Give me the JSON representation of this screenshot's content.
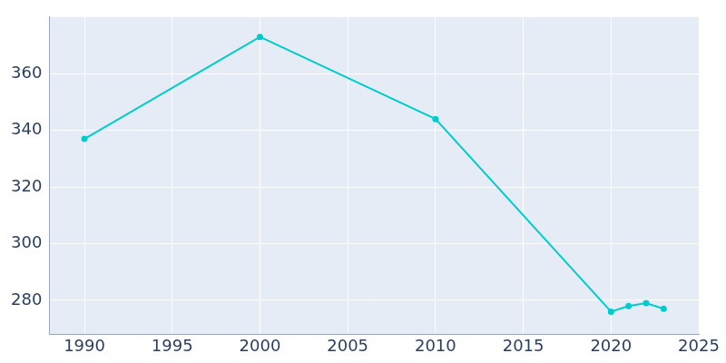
{
  "chart_data": {
    "type": "line",
    "x": [
      1990,
      2000,
      2010,
      2020,
      2021,
      2022,
      2023
    ],
    "values": [
      337,
      373,
      344,
      276,
      278,
      279,
      277
    ],
    "color": "#00cccc",
    "marker": "circle",
    "xlim": [
      1988,
      2025
    ],
    "xticks": [
      1990,
      1995,
      2000,
      2005,
      2010,
      2015,
      2020,
      2025
    ],
    "ylim": [
      268,
      380
    ],
    "yticks": [
      280,
      300,
      320,
      340,
      360
    ],
    "grid": true
  }
}
